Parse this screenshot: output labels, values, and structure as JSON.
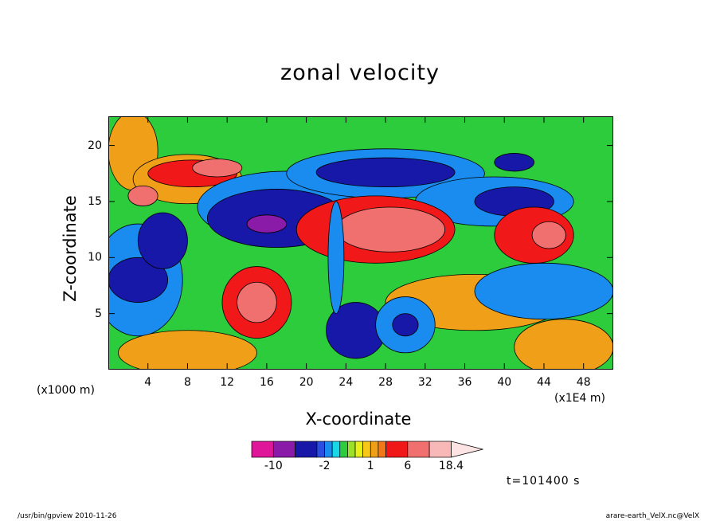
{
  "header": {
    "title": "zonal velocity"
  },
  "footer": {
    "left": "/usr/bin/gpview   2010-11-26",
    "right": "arare-earth_VelX.nc@VelX"
  },
  "time_label": "t=101400 s",
  "chart_data": {
    "type": "heatmap",
    "title": "zonal velocity",
    "xlabel": "X-coordinate",
    "ylabel": "Z-coordinate",
    "x_unit_left": "(x1000 m)",
    "x_unit_right": "(x1E4 m)",
    "xlim": [
      0,
      51
    ],
    "ylim": [
      0,
      22.6
    ],
    "x_ticks": [
      4,
      8,
      12,
      16,
      20,
      24,
      28,
      32,
      36,
      40,
      44,
      48
    ],
    "y_ticks": [
      5,
      10,
      15,
      20
    ],
    "colorbar": {
      "levels": [
        -14,
        -10,
        -6,
        -3,
        -2,
        -1.5,
        -1,
        -0.5,
        0,
        0.5,
        1,
        2,
        4,
        6,
        10,
        14,
        18.4
      ],
      "colors": [
        "#e0169a",
        "#8a1aa8",
        "#1818a8",
        "#2a4fe0",
        "#1a8cf0",
        "#18d8e8",
        "#2ccc3c",
        "#9be02a",
        "#e8f01a",
        "#f8c818",
        "#f0a018",
        "#f07818",
        "#f01818",
        "#f07070",
        "#f8b8b8"
      ],
      "tick_values": [
        -10,
        -2,
        1,
        6,
        18.4
      ],
      "tick_labels": [
        "-10",
        "-2",
        "1",
        "6",
        "18.4"
      ],
      "extend": "max",
      "extend_color": "#fce4e4"
    },
    "background_color": "#2ccc3c",
    "features": [
      {
        "x": 2.5,
        "y": 19.5,
        "rx": 2.5,
        "ry": 3.5,
        "v": 1
      },
      {
        "x": 3,
        "y": 8,
        "rx": 4.5,
        "ry": 5,
        "v": -2
      },
      {
        "x": 3,
        "y": 8,
        "rx": 3,
        "ry": 2,
        "v": -6
      },
      {
        "x": 5.5,
        "y": 11.5,
        "rx": 2.5,
        "ry": 2.5,
        "v": -6
      },
      {
        "x": 8,
        "y": 17,
        "rx": 5.5,
        "ry": 2.2,
        "v": 1
      },
      {
        "x": 8.5,
        "y": 17.5,
        "rx": 4.5,
        "ry": 1.2,
        "v": 4
      },
      {
        "x": 11,
        "y": 18,
        "rx": 2.5,
        "ry": 0.8,
        "v": 6
      },
      {
        "x": 3.5,
        "y": 15.5,
        "rx": 1.5,
        "ry": 0.9,
        "v": 6
      },
      {
        "x": 18,
        "y": 14.5,
        "rx": 9,
        "ry": 3.2,
        "v": -2
      },
      {
        "x": 17,
        "y": 13.5,
        "rx": 7,
        "ry": 2.6,
        "v": -6
      },
      {
        "x": 16,
        "y": 13,
        "rx": 2,
        "ry": 0.8,
        "v": -10
      },
      {
        "x": 28,
        "y": 17.5,
        "rx": 10,
        "ry": 2.2,
        "v": -2
      },
      {
        "x": 28,
        "y": 17.6,
        "rx": 7,
        "ry": 1.3,
        "v": -6
      },
      {
        "x": 39,
        "y": 15,
        "rx": 8,
        "ry": 2.2,
        "v": -2
      },
      {
        "x": 41,
        "y": 15,
        "rx": 4,
        "ry": 1.3,
        "v": -6
      },
      {
        "x": 41,
        "y": 18.5,
        "rx": 2,
        "ry": 0.8,
        "v": -6
      },
      {
        "x": 37,
        "y": 6,
        "rx": 9,
        "ry": 2.5,
        "v": 1
      },
      {
        "x": 44,
        "y": 7,
        "rx": 7,
        "ry": 2.5,
        "v": -2
      },
      {
        "x": 27,
        "y": 12.5,
        "rx": 8,
        "ry": 3,
        "v": 4
      },
      {
        "x": 28.5,
        "y": 12.5,
        "rx": 5.5,
        "ry": 2,
        "v": 6
      },
      {
        "x": 43,
        "y": 12,
        "rx": 4,
        "ry": 2.5,
        "v": 4
      },
      {
        "x": 44.5,
        "y": 12,
        "rx": 1.7,
        "ry": 1.2,
        "v": 6
      },
      {
        "x": 15,
        "y": 6,
        "rx": 3.5,
        "ry": 3.2,
        "v": 4
      },
      {
        "x": 15,
        "y": 6,
        "rx": 2,
        "ry": 1.8,
        "v": 6
      },
      {
        "x": 25,
        "y": 3.5,
        "rx": 3,
        "ry": 2.5,
        "v": -6
      },
      {
        "x": 30,
        "y": 4,
        "rx": 3,
        "ry": 2.5,
        "v": -2
      },
      {
        "x": 30,
        "y": 4,
        "rx": 1.3,
        "ry": 1,
        "v": -6
      },
      {
        "x": 8,
        "y": 1.5,
        "rx": 7,
        "ry": 2,
        "v": 1
      },
      {
        "x": 46,
        "y": 2,
        "rx": 5,
        "ry": 2.5,
        "v": 1
      },
      {
        "x": 23,
        "y": 10,
        "rx": 0.8,
        "ry": 5,
        "v": -2
      }
    ]
  }
}
